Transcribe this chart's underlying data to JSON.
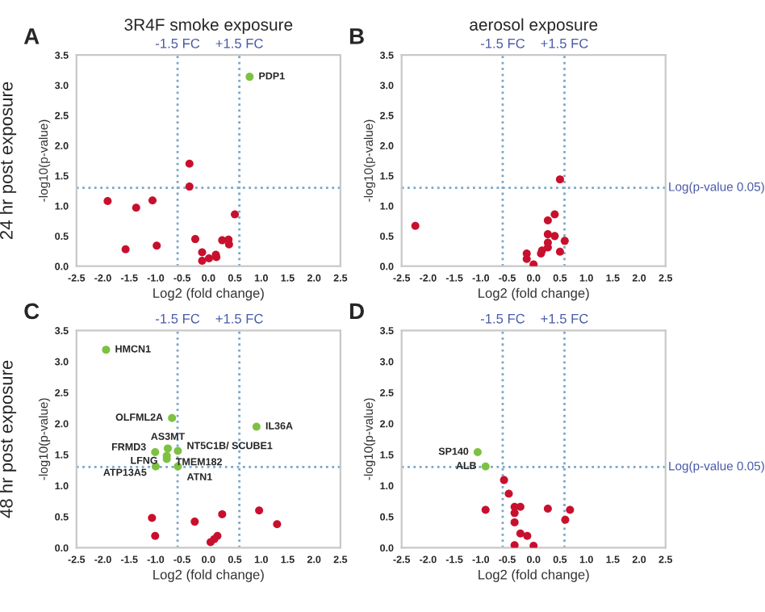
{
  "chart_data": [
    {
      "type": "scatter",
      "title": "3R4F smoke exposure",
      "xlabel": "Log2 (fold change)",
      "ylabel": "-log10(p-value)",
      "xlim": [
        -2.5,
        2.5
      ],
      "ylim": [
        0,
        3.5
      ],
      "xticks": [
        {
          "value": -2.5,
          "label": "-2.5"
        },
        {
          "value": -2.0,
          "label": "-2.0"
        },
        {
          "value": -1.5,
          "label": "-1.5"
        },
        {
          "value": -1.0,
          "label": "-1.0"
        },
        {
          "value": -0.5,
          "label": "-0.5"
        },
        {
          "value": 0,
          "label": "0.0"
        },
        {
          "value": 0.5,
          "label": "0.5"
        },
        {
          "value": 1.0,
          "label": "1.0"
        },
        {
          "value": 1.5,
          "label": "1.5"
        },
        {
          "value": 2.0,
          "label": "2.0"
        },
        {
          "value": 2.5,
          "label": "2.5"
        }
      ],
      "yticks": [
        {
          "value": 0,
          "label": "0.0"
        },
        0.5,
        {
          "value": 1.0,
          "label": "1.0"
        },
        1.5,
        {
          "value": 2.0,
          "label": "2.0"
        },
        2.5,
        {
          "value": 3.0,
          "label": "3.0"
        },
        3.5
      ],
      "marker": "circle",
      "grid": false,
      "legend": false,
      "series": [
        {
          "color": "#7dc142",
          "x": [
            0.78
          ],
          "values": [
            3.14
          ]
        },
        {
          "color": "#c8102e",
          "x": [
            -0.36,
            -0.36,
            -1.91,
            -1.37,
            -1.06,
            0.5,
            -1.57,
            -0.98,
            -0.25,
            -0.12,
            -0.12,
            0.01,
            0.14,
            0.15,
            0.26,
            0.38,
            0.39
          ],
          "values": [
            1.7,
            1.32,
            1.08,
            0.97,
            1.09,
            0.86,
            0.28,
            0.34,
            0.45,
            0.23,
            0.09,
            0.13,
            0.19,
            0.15,
            0.43,
            0.44,
            0.36
          ]
        }
      ],
      "ref_lines": [
        {
          "axis": "x",
          "value": -0.585,
          "label": "-1.5 FC",
          "color": "#7ba7c9",
          "line_style": "dotted"
        },
        {
          "axis": "x",
          "value": 0.585,
          "label": "+1.5 FC",
          "color": "#7ba7c9",
          "line_style": "dotted"
        },
        {
          "axis": "y",
          "value": 1.3,
          "label": null,
          "color": "#7ba7c9",
          "line_style": "dotted"
        }
      ],
      "annotations": [
        "A",
        "24 hr post exposure",
        {
          "text": "PDP1",
          "x": 0.78,
          "y": 3.14
        }
      ]
    },
    {
      "type": "scatter",
      "title": "aerosol exposure",
      "xlabel": "Log2 (fold change)",
      "ylabel": "-log10(p-value)",
      "xlim": [
        -2.5,
        2.5
      ],
      "ylim": [
        0,
        3.5
      ],
      "xticks": [
        {
          "value": -2.5,
          "label": "-2.5"
        },
        {
          "value": -2.0,
          "label": "-2.0"
        },
        {
          "value": -1.5,
          "label": "-1.5"
        },
        {
          "value": -1.0,
          "label": "-1.0"
        },
        {
          "value": -0.5,
          "label": "-0.5"
        },
        {
          "value": 0,
          "label": "0.0"
        },
        {
          "value": 0.5,
          "label": "0.5"
        },
        {
          "value": 1.0,
          "label": "1.0"
        },
        {
          "value": 1.5,
          "label": "1.5"
        },
        {
          "value": 2.0,
          "label": "2.0"
        },
        {
          "value": 2.5,
          "label": "2.5"
        }
      ],
      "yticks": [
        {
          "value": 0,
          "label": "0.0"
        },
        0.5,
        {
          "value": 1.0,
          "label": "1.0"
        },
        1.5,
        {
          "value": 2.0,
          "label": "2.0"
        },
        2.5,
        {
          "value": 3.0,
          "label": "3.0"
        },
        3.5
      ],
      "marker": "circle",
      "grid": false,
      "legend": false,
      "series": [
        {
          "color": "#c8102e",
          "x": [
            -2.24,
            0.5,
            0.4,
            0.27,
            0.27,
            0.4,
            0.27,
            0.27,
            0.59,
            0.5,
            0.16,
            0.14,
            -0.13,
            -0.13,
            0.0
          ],
          "values": [
            0.67,
            1.44,
            0.86,
            0.76,
            0.53,
            0.5,
            0.39,
            0.31,
            0.42,
            0.24,
            0.26,
            0.21,
            0.21,
            0.12,
            0.03
          ]
        }
      ],
      "ref_lines": [
        {
          "axis": "x",
          "value": -0.585,
          "label": "-1.5 FC",
          "color": "#7ba7c9",
          "line_style": "dotted"
        },
        {
          "axis": "x",
          "value": 0.585,
          "label": "+1.5 FC",
          "color": "#7ba7c9",
          "line_style": "dotted"
        },
        {
          "axis": "y",
          "value": 1.3,
          "label": "Log(p-value 0.05)",
          "color": "#7ba7c9",
          "line_style": "dotted"
        }
      ],
      "annotations": [
        "B"
      ]
    },
    {
      "type": "scatter",
      "xlabel": "Log2 (fold change)",
      "ylabel": "-log10(p-value)",
      "xlim": [
        -2.5,
        2.5
      ],
      "ylim": [
        0,
        3.5
      ],
      "xticks": [
        {
          "value": -2.5,
          "label": "-2.5"
        },
        {
          "value": -2.0,
          "label": "-2.0"
        },
        {
          "value": -1.5,
          "label": "-1.5"
        },
        {
          "value": -1.0,
          "label": "-1.0"
        },
        {
          "value": -0.5,
          "label": "-0.5"
        },
        {
          "value": 0,
          "label": "0.0"
        },
        {
          "value": 0.5,
          "label": "0.5"
        },
        {
          "value": 1.0,
          "label": "1.0"
        },
        {
          "value": 1.5,
          "label": "1.5"
        },
        {
          "value": 2.0,
          "label": "2.0"
        },
        {
          "value": 2.5,
          "label": "2.5"
        }
      ],
      "yticks": [
        {
          "value": 0,
          "label": "0.0"
        },
        0.5,
        {
          "value": 1.0,
          "label": "1.0"
        },
        1.5,
        {
          "value": 2.0,
          "label": "2.0"
        },
        2.5,
        {
          "value": 3.0,
          "label": "3.0"
        },
        3.5
      ],
      "marker": "circle",
      "grid": false,
      "legend": false,
      "series": [
        {
          "color": "#7dc142",
          "x": [
            -1.94,
            -0.69,
            0.91,
            -0.77,
            -0.58,
            -1.01,
            -0.79,
            -0.79,
            -1.0,
            -0.58
          ],
          "values": [
            3.19,
            2.09,
            1.95,
            1.6,
            1.56,
            1.54,
            1.43,
            1.48,
            1.31,
            1.31
          ]
        },
        {
          "color": "#c8102e",
          "x": [
            -1.07,
            -1.01,
            -0.26,
            0.26,
            0.04,
            0.11,
            0.17,
            0.96,
            1.3
          ],
          "values": [
            0.48,
            0.19,
            0.42,
            0.54,
            0.09,
            0.14,
            0.19,
            0.6,
            0.38
          ]
        }
      ],
      "ref_lines": [
        {
          "axis": "x",
          "value": -0.585,
          "label": "-1.5 FC",
          "color": "#7ba7c9",
          "line_style": "dotted"
        },
        {
          "axis": "x",
          "value": 0.585,
          "label": "+1.5 FC",
          "color": "#7ba7c9",
          "line_style": "dotted"
        },
        {
          "axis": "y",
          "value": 1.3,
          "label": null,
          "color": "#7ba7c9",
          "line_style": "dotted"
        }
      ],
      "annotations": [
        "C",
        "48 hr post exposure",
        {
          "text": "HMCN1",
          "x": -1.94,
          "y": 3.19
        },
        {
          "text": "OLFML2A",
          "x": -0.69,
          "y": 2.09
        },
        {
          "text": "IL36A",
          "x": 0.91,
          "y": 1.95
        },
        {
          "text": "AS3MT",
          "x": -0.77,
          "y": 1.6
        },
        {
          "text": "NT5C1B/ SCUBE1",
          "x": -0.58,
          "y": 1.56
        },
        {
          "text": "FRMD3",
          "x": -1.01,
          "y": 1.54
        },
        {
          "text": "LFNG",
          "x": -0.79,
          "y": 1.43
        },
        {
          "text": "TMEM182",
          "x": -0.79,
          "y": 1.48
        },
        {
          "text": "ATP13A5",
          "x": -1.0,
          "y": 1.31
        },
        {
          "text": "ATN1",
          "x": -0.58,
          "y": 1.31
        }
      ]
    },
    {
      "type": "scatter",
      "xlabel": "Log2 (fold change)",
      "ylabel": "-log10(p-value)",
      "xlim": [
        -2.5,
        2.5
      ],
      "ylim": [
        0,
        3.5
      ],
      "xticks": [
        {
          "value": -2.5,
          "label": "-2.5"
        },
        {
          "value": -2.0,
          "label": "-2.0"
        },
        {
          "value": -1.5,
          "label": "-1.5"
        },
        {
          "value": -1.0,
          "label": "-1.0"
        },
        {
          "value": -0.5,
          "label": "-0.5"
        },
        {
          "value": 0,
          "label": "0.0"
        },
        {
          "value": 0.5,
          "label": "0.5"
        },
        {
          "value": 1.0,
          "label": "1.0"
        },
        {
          "value": 1.5,
          "label": "1.5"
        },
        {
          "value": 2.0,
          "label": "2.0"
        },
        {
          "value": 2.5,
          "label": "2.5"
        }
      ],
      "yticks": [
        {
          "value": 0,
          "label": "0.0"
        },
        0.5,
        {
          "value": 1.0,
          "label": "1.0"
        },
        1.5,
        {
          "value": 2.0,
          "label": "2.0"
        },
        2.5,
        {
          "value": 3.0,
          "label": "3.0"
        },
        3.5
      ],
      "marker": "circle",
      "grid": false,
      "legend": false,
      "series": [
        {
          "color": "#7dc142",
          "x": [
            -1.06,
            -0.91
          ],
          "values": [
            1.54,
            1.31
          ]
        },
        {
          "color": "#c8102e",
          "x": [
            -0.56,
            -0.47,
            -0.91,
            -0.36,
            -0.25,
            -0.36,
            -0.36,
            0.27,
            0.69,
            0.6,
            -0.25,
            -0.12,
            -0.36,
            0.0
          ],
          "values": [
            1.09,
            0.87,
            0.61,
            0.66,
            0.66,
            0.56,
            0.41,
            0.63,
            0.61,
            0.45,
            0.23,
            0.19,
            0.04,
            0.03
          ]
        }
      ],
      "ref_lines": [
        {
          "axis": "x",
          "value": -0.585,
          "label": "-1.5 FC",
          "color": "#7ba7c9",
          "line_style": "dotted"
        },
        {
          "axis": "x",
          "value": 0.585,
          "label": "+1.5 FC",
          "color": "#7ba7c9",
          "line_style": "dotted"
        },
        {
          "axis": "y",
          "value": 1.3,
          "label": "Log(p-value 0.05)",
          "color": "#7ba7c9",
          "line_style": "dotted"
        }
      ],
      "annotations": [
        "D",
        {
          "text": "SP140",
          "x": -1.06,
          "y": 1.54
        },
        {
          "text": "ALB",
          "x": -0.91,
          "y": 1.31
        }
      ]
    }
  ]
}
